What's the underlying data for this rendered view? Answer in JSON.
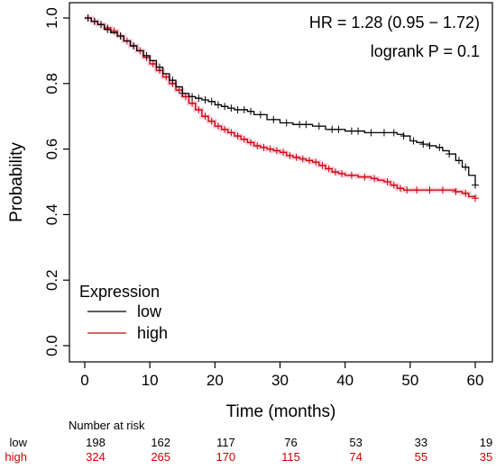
{
  "chart_data": {
    "type": "line",
    "title": "",
    "xlabel": "Time (months)",
    "ylabel": "Probability",
    "xlim": [
      0,
      60
    ],
    "ylim": [
      0,
      1
    ],
    "x_ticks": [
      0,
      10,
      20,
      30,
      40,
      50,
      60
    ],
    "x_tick_labels": [
      "0",
      "10",
      "20",
      "30",
      "40",
      "50",
      "60"
    ],
    "y_ticks": [
      0,
      0.2,
      0.4,
      0.6,
      0.8,
      1.0
    ],
    "y_tick_labels": [
      "0.0",
      "0.2",
      "0.4",
      "0.6",
      "0.8",
      "1.0"
    ],
    "grid": false,
    "step_curve": true,
    "annotations": [
      "HR = 1.28 (0.95 − 1.72)",
      "logrank P = 0.1"
    ],
    "legend": {
      "title": "Expression",
      "position": "bottom-left",
      "entries": [
        "low",
        "high"
      ]
    },
    "series": [
      {
        "name": "low",
        "color": "#000000",
        "x": [
          0,
          1,
          2,
          3,
          4,
          5,
          6,
          7,
          8,
          9,
          10,
          11,
          12,
          13,
          14,
          15,
          16,
          17,
          18,
          19,
          20,
          21,
          22,
          23,
          24,
          25,
          26,
          28,
          30,
          32,
          35,
          37,
          40,
          43,
          45,
          47,
          48,
          49,
          50,
          51,
          52,
          53,
          54,
          55,
          56,
          57,
          58,
          59,
          60
        ],
        "y": [
          1.0,
          0.99,
          0.98,
          0.965,
          0.955,
          0.945,
          0.93,
          0.915,
          0.9,
          0.885,
          0.87,
          0.85,
          0.83,
          0.81,
          0.79,
          0.77,
          0.76,
          0.755,
          0.75,
          0.745,
          0.735,
          0.73,
          0.725,
          0.72,
          0.72,
          0.715,
          0.705,
          0.69,
          0.68,
          0.675,
          0.67,
          0.66,
          0.655,
          0.65,
          0.65,
          0.65,
          0.645,
          0.64,
          0.625,
          0.62,
          0.615,
          0.61,
          0.605,
          0.595,
          0.585,
          0.565,
          0.545,
          0.52,
          0.49
        ],
        "censor_x": [
          0.5,
          1.5,
          2.5,
          3.5,
          5.5,
          7.5,
          9.5,
          11.5,
          13.5,
          15,
          16.5,
          17.5,
          18.5,
          19.5,
          20.5,
          21.5,
          22.5,
          23.5,
          24.5,
          25.5,
          27,
          29,
          31,
          33,
          34,
          36,
          38,
          39,
          41,
          42,
          44,
          46,
          47.5,
          49,
          50.5,
          52,
          53,
          54.5,
          56,
          57.5,
          58.5,
          60
        ]
      },
      {
        "name": "high",
        "color": "#cc0000",
        "x": [
          0,
          1,
          2,
          3,
          4,
          5,
          6,
          7,
          8,
          9,
          10,
          11,
          12,
          13,
          14,
          15,
          16,
          17,
          18,
          19,
          20,
          21,
          22,
          23,
          24,
          25,
          26,
          27,
          28,
          29,
          30,
          31,
          32,
          33,
          34,
          35,
          36,
          37,
          38,
          39,
          40,
          42,
          44,
          45,
          46,
          47,
          48,
          49,
          50,
          52,
          54,
          56,
          57,
          58,
          59,
          60
        ],
        "y": [
          1.0,
          0.99,
          0.98,
          0.97,
          0.96,
          0.945,
          0.93,
          0.915,
          0.9,
          0.88,
          0.86,
          0.84,
          0.82,
          0.8,
          0.78,
          0.76,
          0.74,
          0.72,
          0.7,
          0.685,
          0.67,
          0.66,
          0.65,
          0.64,
          0.63,
          0.62,
          0.61,
          0.605,
          0.6,
          0.595,
          0.59,
          0.58,
          0.575,
          0.57,
          0.565,
          0.56,
          0.55,
          0.54,
          0.53,
          0.525,
          0.52,
          0.515,
          0.51,
          0.505,
          0.5,
          0.49,
          0.48,
          0.475,
          0.475,
          0.475,
          0.475,
          0.475,
          0.47,
          0.465,
          0.455,
          0.45
        ],
        "censor_x": [
          0.5,
          1.5,
          2.5,
          3.5,
          4.5,
          5.5,
          6.5,
          7.5,
          8.5,
          9.5,
          10.5,
          11.5,
          12.5,
          13.5,
          14.5,
          15.5,
          16.5,
          17.5,
          18.5,
          19.5,
          20.5,
          21.5,
          22.5,
          23.5,
          24.5,
          25.5,
          26.5,
          27.5,
          28.5,
          29.5,
          30.5,
          31.5,
          32.5,
          33.5,
          34.5,
          35.5,
          36.5,
          37.5,
          38.5,
          39.5,
          41,
          43,
          44.5,
          46.5,
          47.5,
          48.5,
          49.5,
          51,
          53,
          55,
          57,
          58.5,
          60
        ]
      }
    ],
    "risk_table": {
      "label": "Number at risk",
      "times": [
        0,
        10,
        20,
        30,
        40,
        50,
        60
      ],
      "rows": [
        {
          "name": "low",
          "color": "#000000",
          "values": [
            "198",
            "162",
            "117",
            "76",
            "53",
            "33",
            "19"
          ]
        },
        {
          "name": "high",
          "color": "#cc0000",
          "values": [
            "324",
            "265",
            "170",
            "115",
            "74",
            "55",
            "35"
          ]
        }
      ]
    }
  }
}
